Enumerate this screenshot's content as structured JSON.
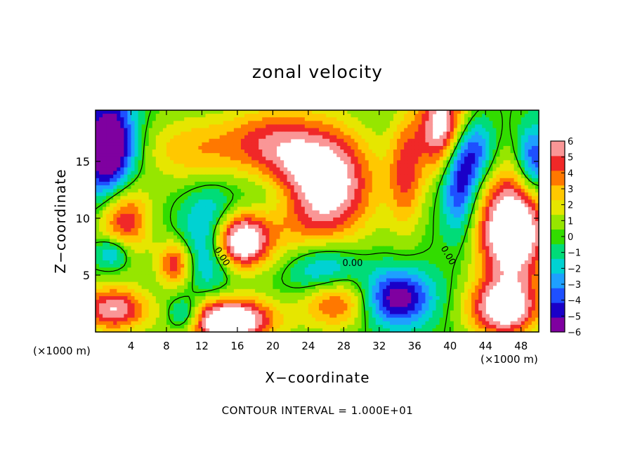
{
  "chart_data": {
    "type": "heatmap",
    "title": "zonal velocity",
    "xlabel": "X−coordinate",
    "ylabel": "Z−coordinate",
    "x_unit_label": "(×1000 m)",
    "xlim": [
      0,
      50
    ],
    "ylim": [
      0,
      19.5
    ],
    "x_ticks": [
      4,
      8,
      12,
      16,
      20,
      24,
      28,
      32,
      36,
      40,
      44,
      48
    ],
    "y_ticks": [
      5,
      10,
      15
    ],
    "colorbar": {
      "min": -6,
      "max": 6,
      "ticks": [
        6,
        5,
        4,
        3,
        2,
        1,
        0,
        -1,
        -2,
        -3,
        -4,
        -5,
        -6
      ],
      "tick_labels": [
        "6",
        "5",
        "4",
        "3",
        "2",
        "1",
        "0",
        "−1",
        "−2",
        "−3",
        "−4",
        "−5",
        "−6"
      ],
      "colors": [
        "#7f00a0",
        "#1a00c8",
        "#1e50ff",
        "#1ea0ff",
        "#00d2d2",
        "#00dc78",
        "#32dc00",
        "#96e600",
        "#e6e600",
        "#ffc800",
        "#ff7800",
        "#f02828",
        "#fa9696"
      ]
    },
    "contour_labels": [
      "0.00",
      "0.00",
      "0.00"
    ],
    "contour_interval_text": "CONTOUR INTERVAL = 1.000E+01",
    "grid": false,
    "legend": "colorbar-right",
    "features": {
      "positive_regions": [
        {
          "x": 25,
          "y": 13,
          "sx": 6,
          "sy": 5,
          "a": 9
        },
        {
          "x": 11,
          "y": 16,
          "sx": 6,
          "sy": 3,
          "a": 3
        },
        {
          "x": 19,
          "y": 17,
          "sx": 5,
          "sy": 3,
          "a": 3
        },
        {
          "x": 16,
          "y": 8,
          "sx": 3.5,
          "sy": 2.5,
          "a": 9
        },
        {
          "x": 47,
          "y": 9,
          "sx": 4,
          "sy": 5,
          "a": 9
        },
        {
          "x": 3,
          "y": 10,
          "sx": 3,
          "sy": 3.5,
          "a": 6
        },
        {
          "x": 9,
          "y": 6,
          "sx": 2,
          "sy": 2,
          "a": 5
        },
        {
          "x": 15,
          "y": 1,
          "sx": 5,
          "sy": 2,
          "a": 9
        },
        {
          "x": 27,
          "y": 3,
          "sx": 4,
          "sy": 2.5,
          "a": 6
        },
        {
          "x": 2,
          "y": 2,
          "sx": 4,
          "sy": 2,
          "a": 6
        },
        {
          "x": 46,
          "y": 2,
          "sx": 4,
          "sy": 2.5,
          "a": 7
        },
        {
          "x": 35,
          "y": 14,
          "sx": 2,
          "sy": 5,
          "a": 4
        },
        {
          "x": 39.5,
          "y": 18,
          "sx": 3,
          "sy": 4,
          "a": 8
        }
      ],
      "negative_regions": [
        {
          "x": 1.5,
          "y": 16,
          "sx": 3,
          "sy": 5,
          "a": -8
        },
        {
          "x": 13,
          "y": 8,
          "sx": 3,
          "sy": 4,
          "a": -5
        },
        {
          "x": 26,
          "y": 5,
          "sx": 4,
          "sy": 2.5,
          "a": -5
        },
        {
          "x": 34,
          "y": 3,
          "sx": 4,
          "sy": 2.5,
          "a": -6
        },
        {
          "x": 41,
          "y": 14,
          "sx": 2,
          "sy": 5,
          "a": -6
        },
        {
          "x": 43,
          "y": 16,
          "sx": 2,
          "sy": 3,
          "a": -4
        },
        {
          "x": 49.5,
          "y": 15,
          "sx": 2,
          "sy": 3,
          "a": -5
        },
        {
          "x": 2,
          "y": 7,
          "sx": 2,
          "sy": 1.5,
          "a": -4
        },
        {
          "x": 10,
          "y": 1.5,
          "sx": 2,
          "sy": 1.5,
          "a": -4
        },
        {
          "x": 21,
          "y": 12,
          "sx": 5,
          "sy": 2.5,
          "a": -3
        }
      ]
    }
  }
}
